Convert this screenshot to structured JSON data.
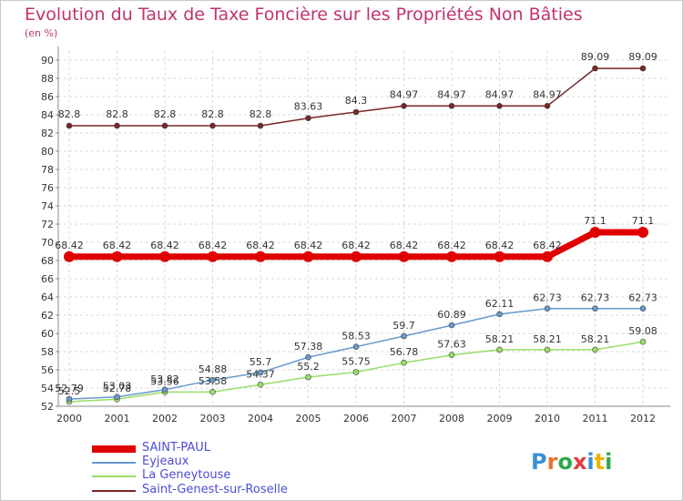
{
  "title": "Evolution du Taux de Taxe Foncière sur les Propriétés Non Bâties",
  "unit": "(en %)",
  "logo": "Proxiti",
  "chart_data": {
    "type": "line",
    "title": "Evolution du Taux de Taxe Foncière sur les Propriétés Non Bâties",
    "ylabel": "(en %)",
    "xlabel": "",
    "ylim": [
      52,
      91
    ],
    "yticks": [
      52,
      54,
      56,
      58,
      60,
      62,
      64,
      66,
      68,
      70,
      72,
      74,
      76,
      78,
      80,
      82,
      84,
      86,
      88,
      90
    ],
    "categories": [
      "2000",
      "2001",
      "2002",
      "2003",
      "2004",
      "2005",
      "2006",
      "2007",
      "2008",
      "2009",
      "2010",
      "2011",
      "2012"
    ],
    "series": [
      {
        "name": "SAINT-PAUL",
        "color": "#e00000",
        "values": [
          68.42,
          68.42,
          68.42,
          68.42,
          68.42,
          68.42,
          68.42,
          68.42,
          68.42,
          68.42,
          68.42,
          71.1,
          71.1
        ],
        "labels": [
          "68.42",
          "68.42",
          "68.42",
          "68.42",
          "68.42",
          "68.42",
          "68.42",
          "68.42",
          "68.42",
          "68.42",
          "68.42",
          "71.1",
          "71.1"
        ]
      },
      {
        "name": "Eyjeaux",
        "color": "#6699cc",
        "values": [
          52.79,
          53.03,
          53.82,
          54.88,
          55.7,
          57.38,
          58.53,
          59.7,
          60.89,
          62.11,
          62.73,
          62.73,
          62.73
        ],
        "labels": [
          "52.79",
          "53.03",
          "53.82",
          "54.88",
          "55.7",
          "57.38",
          "58.53",
          "59.7",
          "60.89",
          "62.11",
          "62.73",
          "62.73",
          "62.73"
        ]
      },
      {
        "name": "La Geneytouse",
        "color": "#99dd66",
        "values": [
          52.5,
          52.78,
          53.56,
          53.58,
          54.37,
          55.2,
          55.75,
          56.78,
          57.63,
          58.21,
          58.21,
          58.21,
          59.08
        ],
        "labels": [
          "52.5",
          "52.78",
          "53.56",
          "53.58",
          "54.37",
          "55.2",
          "55.75",
          "56.78",
          "57.63",
          "58.21",
          "58.21",
          "58.21",
          "59.08"
        ]
      },
      {
        "name": "Saint-Genest-sur-Roselle",
        "color": "#7a2626",
        "values": [
          82.8,
          82.8,
          82.8,
          82.8,
          82.8,
          83.63,
          84.3,
          84.97,
          84.97,
          84.97,
          84.97,
          89.09,
          89.09
        ],
        "labels": [
          "82.8",
          "82.8",
          "82.8",
          "82.8",
          "82.8",
          "83.63",
          "84.3",
          "84.97",
          "84.97",
          "84.97",
          "84.97",
          "89.09",
          "89.09"
        ]
      }
    ],
    "legend": [
      "SAINT-PAUL",
      "Eyjeaux",
      "La Geneytouse",
      "Saint-Genest-sur-Roselle"
    ]
  }
}
